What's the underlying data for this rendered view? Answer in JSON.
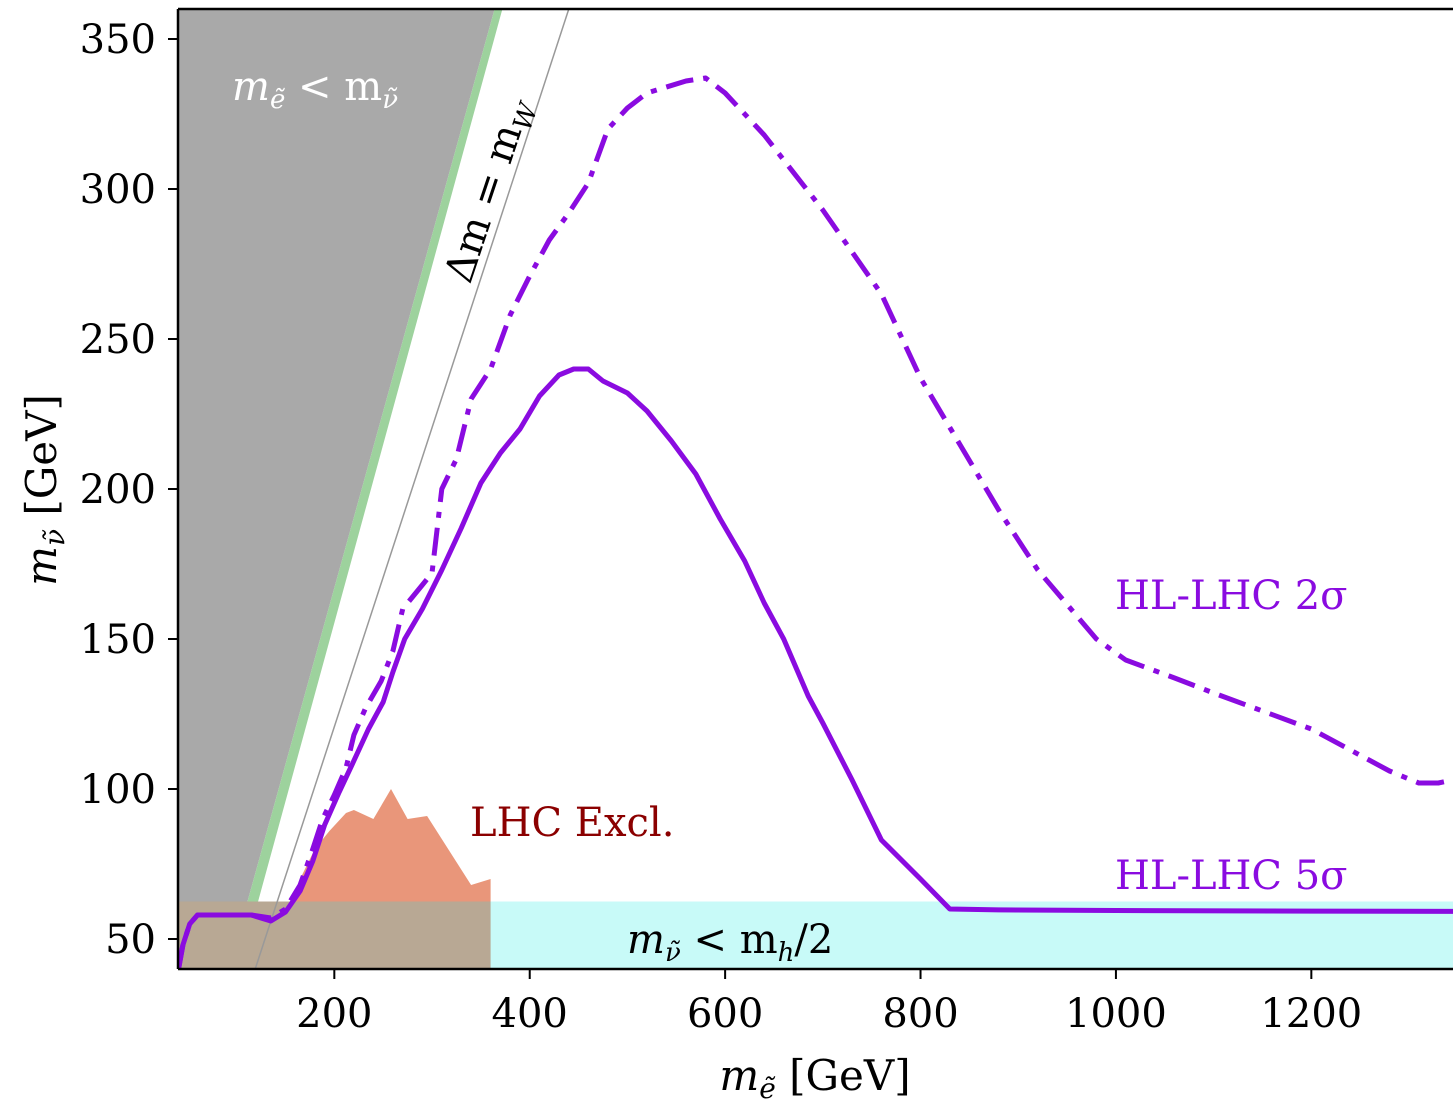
{
  "chart_data": {
    "type": "line",
    "xlabel": "m_ẽ [GeV]",
    "ylabel": "m_ν̃ [GeV]",
    "xlim": [
      40,
      1345
    ],
    "ylim": [
      40,
      360
    ],
    "x_ticks": [
      200,
      400,
      600,
      800,
      1000,
      1200
    ],
    "y_ticks": [
      50,
      100,
      150,
      200,
      250,
      300,
      350
    ],
    "grid": false,
    "series": [
      {
        "name": "HL-LHC 2σ",
        "style": "dashdot",
        "color": "#8a0be0",
        "points": [
          [
            40,
            39
          ],
          [
            45,
            48
          ],
          [
            52,
            55
          ],
          [
            60,
            58
          ],
          [
            90,
            58
          ],
          [
            115,
            58
          ],
          [
            135,
            57
          ],
          [
            150,
            60
          ],
          [
            165,
            68
          ],
          [
            178,
            80
          ],
          [
            188,
            90
          ],
          [
            200,
            98
          ],
          [
            212,
            107
          ],
          [
            220,
            118
          ],
          [
            232,
            127
          ],
          [
            248,
            136
          ],
          [
            260,
            146
          ],
          [
            270,
            160
          ],
          [
            290,
            168
          ],
          [
            300,
            172
          ],
          [
            310,
            200
          ],
          [
            325,
            210
          ],
          [
            340,
            230
          ],
          [
            360,
            240
          ],
          [
            380,
            258
          ],
          [
            400,
            271
          ],
          [
            420,
            283
          ],
          [
            440,
            292
          ],
          [
            460,
            302
          ],
          [
            480,
            320
          ],
          [
            500,
            327
          ],
          [
            520,
            332
          ],
          [
            560,
            336
          ],
          [
            580,
            337
          ],
          [
            600,
            332
          ],
          [
            640,
            318
          ],
          [
            700,
            293
          ],
          [
            760,
            265
          ],
          [
            800,
            237
          ],
          [
            840,
            215
          ],
          [
            880,
            193
          ],
          [
            920,
            173
          ],
          [
            980,
            150
          ],
          [
            1010,
            143
          ],
          [
            1060,
            137
          ],
          [
            1100,
            132
          ],
          [
            1150,
            126
          ],
          [
            1200,
            120
          ],
          [
            1240,
            113
          ],
          [
            1280,
            106
          ],
          [
            1310,
            102
          ],
          [
            1330,
            102
          ],
          [
            1345,
            103
          ]
        ]
      },
      {
        "name": "HL-LHC 5σ",
        "style": "solid",
        "color": "#8a0be0",
        "points": [
          [
            40,
            39
          ],
          [
            45,
            48
          ],
          [
            52,
            55
          ],
          [
            60,
            58
          ],
          [
            115,
            58
          ],
          [
            135,
            56
          ],
          [
            150,
            59
          ],
          [
            165,
            66
          ],
          [
            178,
            76
          ],
          [
            190,
            88
          ],
          [
            205,
            99
          ],
          [
            218,
            108
          ],
          [
            235,
            120
          ],
          [
            250,
            129
          ],
          [
            260,
            139
          ],
          [
            272,
            150
          ],
          [
            290,
            160
          ],
          [
            310,
            173
          ],
          [
            330,
            187
          ],
          [
            350,
            202
          ],
          [
            370,
            212
          ],
          [
            390,
            220
          ],
          [
            410,
            231
          ],
          [
            430,
            238
          ],
          [
            445,
            240
          ],
          [
            460,
            240
          ],
          [
            475,
            236
          ],
          [
            500,
            232
          ],
          [
            520,
            226
          ],
          [
            545,
            216
          ],
          [
            570,
            205
          ],
          [
            595,
            190
          ],
          [
            620,
            176
          ],
          [
            640,
            162
          ],
          [
            660,
            150
          ],
          [
            685,
            131
          ],
          [
            700,
            122
          ],
          [
            730,
            103
          ],
          [
            760,
            83
          ],
          [
            800,
            70
          ],
          [
            830,
            60
          ],
          [
            880,
            59.7
          ],
          [
            1000,
            59.5
          ],
          [
            1200,
            59.3
          ],
          [
            1345,
            59.2
          ]
        ]
      }
    ],
    "regions": [
      {
        "name": "m_ẽ < m_ν̃",
        "color": "#a9a9a9",
        "points": [
          [
            40,
            40
          ],
          [
            40,
            360
          ],
          [
            364,
            360
          ],
          [
            92,
            40
          ]
        ]
      },
      {
        "name": "green band",
        "color": "#9dd29d",
        "points": [
          [
            92,
            40
          ],
          [
            364,
            360
          ],
          [
            372,
            360
          ],
          [
            103,
            40
          ]
        ]
      },
      {
        "name": "m_ν̃ < m_h/2",
        "color": "#c8faf8",
        "points": [
          [
            40,
            40
          ],
          [
            1345,
            40
          ],
          [
            1345,
            62.5
          ],
          [
            40,
            62.5
          ]
        ]
      },
      {
        "name": "LHC Excl.",
        "color": "#e9967a",
        "points": [
          [
            155,
            62.5
          ],
          [
            165,
            70
          ],
          [
            180,
            80
          ],
          [
            195,
            86
          ],
          [
            212,
            92
          ],
          [
            220,
            93
          ],
          [
            240,
            90
          ],
          [
            258,
            100
          ],
          [
            275,
            90
          ],
          [
            295,
            91
          ],
          [
            340,
            68
          ],
          [
            360,
            70
          ],
          [
            360,
            62.5
          ]
        ]
      },
      {
        "name": "LHC Excl. overlap",
        "color": "#b8a894",
        "points": [
          [
            40,
            40
          ],
          [
            40,
            62.5
          ],
          [
            360,
            62.5
          ],
          [
            360,
            40
          ]
        ]
      }
    ],
    "lines": [
      {
        "name": "Δm = m_W",
        "color": "#999999",
        "points": [
          [
            119,
            40
          ],
          [
            440,
            360
          ]
        ]
      }
    ],
    "labels": {
      "region_top_left_main": "m",
      "region_top_left_sub": "ẽ",
      "region_top_left_mid": " < m",
      "region_top_left_sub2": "ν̃",
      "dm_main": "Δm = m",
      "dm_sub": "W",
      "lhc_excl": "LHC Excl.",
      "hl2": "HL-LHC 2σ",
      "hl5": "HL-LHC 5σ",
      "mh_main": "m",
      "mh_sub": "ν̃",
      "mh_mid": " < m",
      "mh_sub2": "h",
      "mh_end": "/2",
      "x_title_main": "m",
      "x_title_sub": "ẽ",
      "x_title_unit": " [GeV]",
      "y_title_main": "m",
      "y_title_sub": "ν̃",
      "y_title_unit": " [GeV]"
    },
    "colors": {
      "curve": "#8a0be0",
      "lhc_text": "#8b0000",
      "region_text": "#ffffff"
    }
  }
}
